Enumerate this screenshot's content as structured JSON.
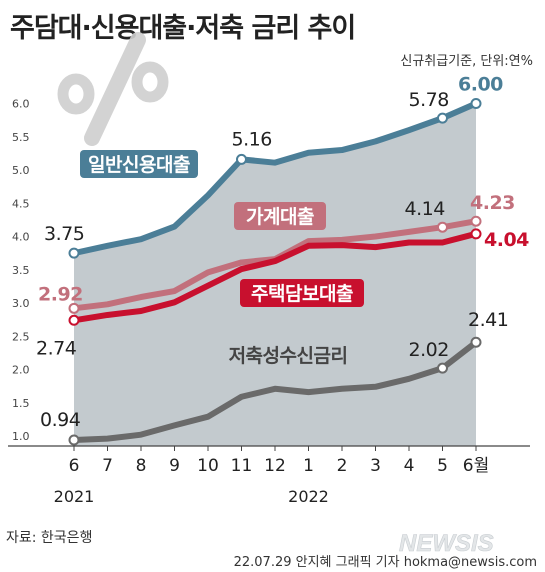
{
  "title": "주담대·신용대출·저축 금리 추이",
  "note": "신규취급기준, 단위:연%",
  "source": "자료:  한국은행",
  "credit": "22.07.29 안지혜 그래픽 기자  hokma@newsis.com",
  "watermark": "NEWSIS",
  "colors": {
    "credit": "#4b7e97",
    "household": "#c2707c",
    "mortgage": "#c8102e",
    "savings": "#6a6a6a",
    "area": "#b8c1c6"
  },
  "chart_data": {
    "type": "line",
    "x": [
      "6",
      "7",
      "8",
      "9",
      "10",
      "11",
      "12",
      "1",
      "2",
      "3",
      "4",
      "5",
      "6월"
    ],
    "year_labels": [
      "2021",
      "2022"
    ],
    "yticks": [
      "1.0",
      "1.5",
      "2.0",
      "2.5",
      "3.0",
      "3.5",
      "4.0",
      "4.5",
      "5.0",
      "5.5",
      "6.0"
    ],
    "ylim": [
      0.5,
      6.2
    ],
    "series": [
      {
        "name": "일반신용대출",
        "color": "#4b7e97",
        "values": [
          3.75,
          3.86,
          3.96,
          4.15,
          4.62,
          5.16,
          5.11,
          5.26,
          5.3,
          5.43,
          5.6,
          5.78,
          6.0
        ],
        "labels": [
          {
            "i": 0,
            "text": "3.75"
          },
          {
            "i": 5,
            "text": "5.16"
          },
          {
            "i": 11,
            "text": "5.78"
          },
          {
            "i": 12,
            "text": "6.00"
          }
        ]
      },
      {
        "name": "가계대출",
        "color": "#c2707c",
        "values": [
          2.92,
          2.98,
          3.09,
          3.18,
          3.46,
          3.61,
          3.66,
          3.93,
          3.95,
          4.0,
          4.07,
          4.14,
          4.23
        ],
        "labels": [
          {
            "i": 0,
            "text": "2.92"
          },
          {
            "i": 11,
            "text": "4.14"
          },
          {
            "i": 12,
            "text": "4.23"
          }
        ]
      },
      {
        "name": "주택담보대출",
        "color": "#c8102e",
        "values": [
          2.74,
          2.82,
          2.88,
          3.01,
          3.26,
          3.51,
          3.63,
          3.86,
          3.87,
          3.84,
          3.91,
          3.91,
          4.04
        ],
        "labels": [
          {
            "i": 0,
            "text": "2.74"
          },
          {
            "i": 12,
            "text": "4.04"
          }
        ]
      },
      {
        "name": "저축성수신금리",
        "color": "#6a6a6a",
        "values": [
          0.94,
          0.96,
          1.02,
          1.16,
          1.29,
          1.59,
          1.71,
          1.66,
          1.71,
          1.74,
          1.86,
          2.02,
          2.41
        ],
        "labels": [
          {
            "i": 0,
            "text": "0.94"
          },
          {
            "i": 11,
            "text": "2.02"
          },
          {
            "i": 12,
            "text": "2.41"
          }
        ]
      }
    ]
  }
}
